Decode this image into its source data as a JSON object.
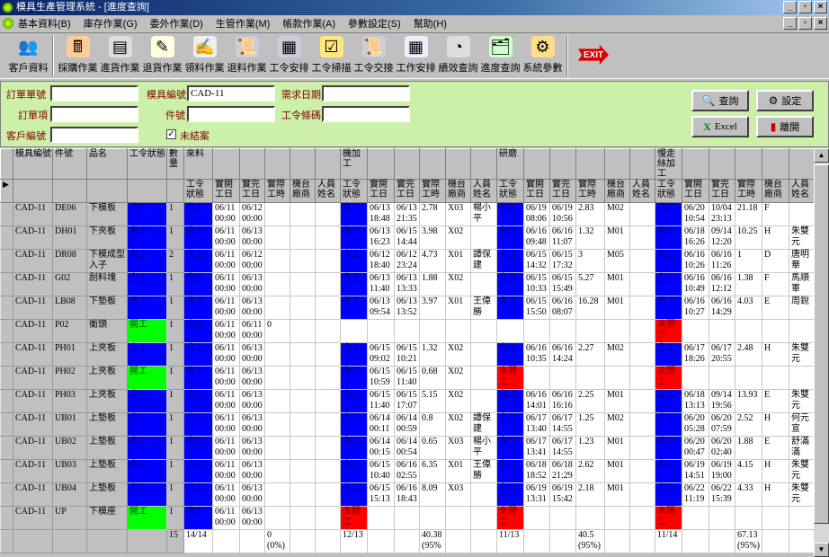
{
  "window": {
    "title": "模具生產管理系統 - [進度查詢]"
  },
  "menu": [
    "基本資料(B)",
    "庫存作業(G)",
    "委外作業(D)",
    "生管作業(M)",
    "帳款作業(A)",
    "參數設定(S)",
    "幫助(H)"
  ],
  "toolbar": [
    {
      "label": "客戶資料",
      "icon": "customers-icon"
    },
    {
      "label": "採購作業",
      "icon": "purchase-icon"
    },
    {
      "label": "進貨作業",
      "icon": "receiving-icon"
    },
    {
      "label": "退貨作業",
      "icon": "return-goods-icon"
    },
    {
      "label": "領料作業",
      "icon": "material-issue-icon"
    },
    {
      "label": "退料作業",
      "icon": "material-return-icon"
    },
    {
      "label": "工令安排",
      "icon": "work-order-icon"
    },
    {
      "label": "工令掃描",
      "icon": "scan-check-icon"
    },
    {
      "label": "工令交接",
      "icon": "handover-icon"
    },
    {
      "label": "工作安排",
      "icon": "calendar-icon"
    },
    {
      "label": "績效查詢",
      "icon": "performance-chart-icon"
    },
    {
      "label": "進度查詢",
      "icon": "progress-folder-icon"
    },
    {
      "label": "系統參數",
      "icon": "system-params-icon"
    }
  ],
  "exit_label": "EXIT",
  "form": {
    "order_no": {
      "label": "訂單單號",
      "value": ""
    },
    "order_item": {
      "label": "訂單項",
      "value": ""
    },
    "customer_no": {
      "label": "客戶編號",
      "value": ""
    },
    "mold_no": {
      "label": "模具編號",
      "value": "CAD-11"
    },
    "part_no": {
      "label": "件號",
      "value": ""
    },
    "due_date": {
      "label": "需求日期",
      "value": ""
    },
    "barcode": {
      "label": "工令條碼",
      "value": ""
    },
    "unclosed": {
      "label": "未結案",
      "checked": true
    },
    "buttons": {
      "query": "查詢",
      "settings": "設定",
      "excel": "Excel",
      "exit": "離開"
    }
  },
  "status_colors": {
    "完工": "#0000ff",
    "開工": "#00ff00",
    "未開工": "#ff0000"
  },
  "grid": {
    "columns": [
      "模具編號",
      "件號",
      "品名",
      "工令狀態",
      "數量"
    ],
    "stages": [
      "來料",
      "機加工",
      "研磨",
      "慢走絲加工"
    ],
    "sub_columns": [
      "工令狀態",
      "實開工日",
      "實完工日",
      "實際工時",
      "機台廠商",
      "人員姓名"
    ],
    "rows": [
      {
        "mold": "CAD-11",
        "part": "DE06",
        "name": "下模板",
        "status": "完工",
        "qty": "1",
        "stages": [
          [
            "完工",
            "06/11 00:00",
            "06/12 00:00",
            "",
            "",
            ""
          ],
          [
            "完工",
            "06/13 18:48",
            "06/13 21:35",
            "2.78",
            "X03",
            "楊小平"
          ],
          [
            "完工",
            "06/19 08:06",
            "06/19 10:56",
            "2.83",
            "M02",
            ""
          ],
          [
            "完工",
            "06/20 10:54",
            "10/04 23:13",
            "21.18",
            "F",
            ""
          ]
        ]
      },
      {
        "mold": "CAD-11",
        "part": "DH01",
        "name": "下夾板",
        "status": "完工",
        "qty": "1",
        "stages": [
          [
            "完工",
            "06/11 00:00",
            "06/13 00:00",
            "",
            "",
            ""
          ],
          [
            "完工",
            "06/13 16:23",
            "06/15 14:44",
            "3.98",
            "X02",
            ""
          ],
          [
            "完工",
            "06/16 09:48",
            "06/16 11:07",
            "1.32",
            "M01",
            ""
          ],
          [
            "完工",
            "06/18 16:26",
            "09/14 12:20",
            "10.25",
            "H",
            "朱雙元"
          ]
        ]
      },
      {
        "mold": "CAD-11",
        "part": "DR08",
        "name": "下模成型入子",
        "status": "完工",
        "qty": "2",
        "stages": [
          [
            "完工",
            "06/11 00:00",
            "06/12 00:00",
            "",
            "",
            ""
          ],
          [
            "完工",
            "06/12 18:40",
            "06/12 23:24",
            "4.73",
            "X01",
            "譚保建"
          ],
          [
            "完工",
            "06/15 14:32",
            "06/15 17:32",
            "3",
            "M05",
            ""
          ],
          [
            "完工",
            "06/16 10:26",
            "06/16 11:26",
            "1",
            "D",
            "唐明華"
          ]
        ]
      },
      {
        "mold": "CAD-11",
        "part": "G02",
        "name": "刮料塊",
        "status": "完工",
        "qty": "1",
        "stages": [
          [
            "完工",
            "06/11 00:00",
            "06/13 00:00",
            "",
            "",
            ""
          ],
          [
            "完工",
            "06/13 11:40",
            "06/13 13:33",
            "1.88",
            "X02",
            ""
          ],
          [
            "完工",
            "06/15 10:33",
            "06/15 15:49",
            "5.27",
            "M01",
            ""
          ],
          [
            "完工",
            "06/16 10:49",
            "06/16 12:12",
            "1.38",
            "F",
            "馬順軍"
          ]
        ]
      },
      {
        "mold": "CAD-11",
        "part": "LB08",
        "name": "下墊板",
        "status": "完工",
        "qty": "1",
        "stages": [
          [
            "完工",
            "06/11 00:00",
            "06/13 00:00",
            "",
            "",
            ""
          ],
          [
            "完工",
            "06/13 09:54",
            "06/13 13:52",
            "3.97",
            "X01",
            "王偉勝"
          ],
          [
            "完工",
            "06/15 15:50",
            "06/16 08:07",
            "16.28",
            "M01",
            ""
          ],
          [
            "完工",
            "06/16 10:27",
            "06/16 14:29",
            "4.03",
            "E",
            "周銳"
          ]
        ]
      },
      {
        "mold": "CAD-11",
        "part": "P02",
        "name": "衝頭",
        "status": "開工",
        "qty": "1",
        "stages": [
          [
            "完工",
            "06/11 00:00",
            "06/11 00:00",
            "0",
            "",
            ""
          ],
          [
            "",
            "",
            "",
            "",
            "",
            ""
          ],
          [
            "",
            "",
            "",
            "",
            "",
            ""
          ],
          [
            "未開工",
            "",
            "",
            "",
            "",
            ""
          ]
        ]
      },
      {
        "mold": "CAD-11",
        "part": "PH01",
        "name": "上夾板",
        "status": "完工",
        "qty": "1",
        "stages": [
          [
            "完工",
            "06/11 00:00",
            "06/13 00:00",
            "",
            "",
            ""
          ],
          [
            "完工",
            "06/15 09:02",
            "06/15 10:21",
            "1.32",
            "X02",
            ""
          ],
          [
            "完工",
            "06/16 10:35",
            "06/16 14:24",
            "2.27",
            "M02",
            ""
          ],
          [
            "完工",
            "06/17 18:26",
            "06/17 20:55",
            "2.48",
            "H",
            "朱雙元"
          ]
        ]
      },
      {
        "mold": "CAD-11",
        "part": "PH02",
        "name": "上夾板",
        "status": "開工",
        "qty": "1",
        "stages": [
          [
            "完工",
            "06/11 00:00",
            "06/13 00:00",
            "",
            "",
            ""
          ],
          [
            "完工",
            "06/15 10:59",
            "06/15 11:40",
            "0.68",
            "X02",
            ""
          ],
          [
            "未開工",
            "",
            "",
            "",
            "",
            ""
          ],
          [
            "未開工",
            "",
            "",
            "",
            "",
            ""
          ]
        ]
      },
      {
        "mold": "CAD-11",
        "part": "PH03",
        "name": "上夾板",
        "status": "完工",
        "qty": "1",
        "stages": [
          [
            "完工",
            "06/11 00:00",
            "06/13 00:00",
            "",
            "",
            ""
          ],
          [
            "完工",
            "06/15 11:40",
            "06/15 17:07",
            "5.15",
            "X02",
            ""
          ],
          [
            "完工",
            "06/16 14:01",
            "06/16 16:16",
            "2.25",
            "M01",
            ""
          ],
          [
            "完工",
            "06/18 13:13",
            "09/14 19:56",
            "13.93",
            "E",
            "朱雙元"
          ]
        ]
      },
      {
        "mold": "CAD-11",
        "part": "UB01",
        "name": "上墊板",
        "status": "完工",
        "qty": "1",
        "stages": [
          [
            "完工",
            "06/11 00:00",
            "06/13 00:00",
            "",
            "",
            ""
          ],
          [
            "完工",
            "06/14 00:11",
            "06/14 00:59",
            "0.8",
            "X02",
            "譚保建"
          ],
          [
            "完工",
            "06/17 13:40",
            "06/17 14:55",
            "1.25",
            "M02",
            ""
          ],
          [
            "完工",
            "06/20 05:28",
            "06/20 07:59",
            "2.52",
            "H",
            "何元宣"
          ]
        ]
      },
      {
        "mold": "CAD-11",
        "part": "UB02",
        "name": "上墊板",
        "status": "完工",
        "qty": "1",
        "stages": [
          [
            "完工",
            "06/11 00:00",
            "06/13 00:00",
            "",
            "",
            ""
          ],
          [
            "完工",
            "06/14 00:15",
            "06/14 00:54",
            "0.65",
            "X03",
            "楊小平"
          ],
          [
            "完工",
            "06/17 13:41",
            "06/17 14:55",
            "1.23",
            "M01",
            ""
          ],
          [
            "完工",
            "06/20 00:47",
            "06/20 02:40",
            "1.88",
            "E",
            "舒滿滿"
          ]
        ]
      },
      {
        "mold": "CAD-11",
        "part": "UB03",
        "name": "上墊板",
        "status": "完工",
        "qty": "1",
        "stages": [
          [
            "完工",
            "06/11 00:00",
            "06/13 00:00",
            "",
            "",
            ""
          ],
          [
            "完工",
            "06/15 10:40",
            "06/16 02:55",
            "6.35",
            "X01",
            "王偉勝"
          ],
          [
            "完工",
            "06/18 18:52",
            "06/18 21:29",
            "2.62",
            "M01",
            ""
          ],
          [
            "完工",
            "06/19 14:51",
            "06/19 19:00",
            "4.15",
            "H",
            "朱雙元"
          ]
        ]
      },
      {
        "mold": "CAD-11",
        "part": "UB04",
        "name": "上墊板",
        "status": "完工",
        "qty": "1",
        "stages": [
          [
            "完工",
            "06/11 00:00",
            "06/13 00:00",
            "",
            "",
            ""
          ],
          [
            "完工",
            "06/15 15:13",
            "06/16 18:43",
            "8.09",
            "X03",
            ""
          ],
          [
            "完工",
            "06/19 13:31",
            "06/19 15:42",
            "2.18",
            "M01",
            ""
          ],
          [
            "完工",
            "06/22 11:19",
            "06/22 15:39",
            "4.33",
            "H",
            "朱雙元"
          ]
        ]
      },
      {
        "mold": "CAD-11",
        "part": "UP",
        "name": "下模座",
        "status": "開工",
        "qty": "1",
        "stages": [
          [
            "完工",
            "06/11 00:00",
            "06/13 00:00",
            "",
            "",
            ""
          ],
          [
            "未開工",
            "",
            "",
            "",
            "",
            ""
          ],
          [
            "未開工",
            "",
            "",
            "",
            "",
            ""
          ],
          [
            "未開工",
            "",
            "",
            "",
            "",
            ""
          ]
        ]
      }
    ],
    "totals": {
      "qty": "15",
      "stages": [
        [
          "14/14",
          "0 (0%)"
        ],
        [
          "12/13",
          "40.38 (95%"
        ],
        [
          "11/13",
          "40.5 (95%)"
        ],
        [
          "11/14",
          "67.13 (95%)"
        ]
      ]
    }
  }
}
